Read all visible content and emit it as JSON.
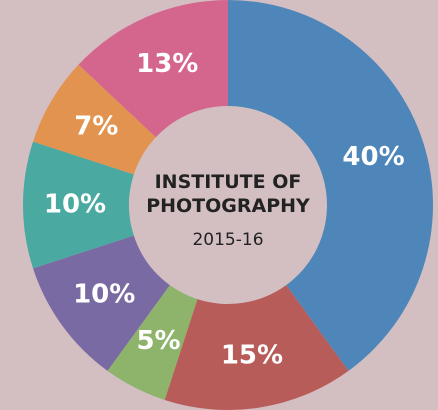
{
  "chart_data": {
    "type": "donut",
    "title": "INSTITUTE OF PHOTOGRAPHY",
    "subtitle": "2015-16",
    "values": [
      40,
      15,
      5,
      10,
      10,
      7,
      13
    ],
    "value_labels": [
      "40%",
      "15%",
      "5%",
      "10%",
      "10%",
      "7%",
      "13%"
    ],
    "colors": [
      "#4f86b9",
      "#b85c5a",
      "#8db46a",
      "#7a6aa3",
      "#4aa9a0",
      "#e2934f",
      "#d4668e"
    ]
  }
}
